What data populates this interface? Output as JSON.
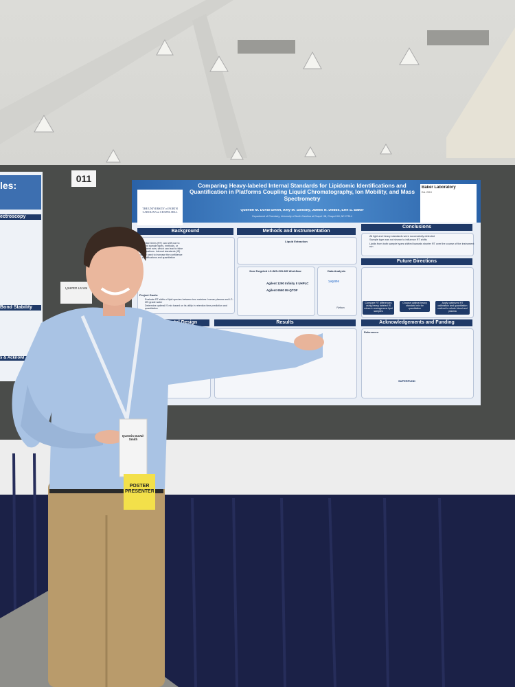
{
  "board_number": "011",
  "name_card": "Quentin DuVal",
  "badge": {
    "name": "Quentin DuVal-Smith",
    "role": "POSTER PRESENTER"
  },
  "left_poster": {
    "title_fragment": "les:",
    "section_1": "ectroscopy",
    "section_2": "Bond Stability",
    "section_3": "s & Acknowl"
  },
  "poster": {
    "title": "Comparing Heavy-labeled Internal Standards for Lipidomic Identifications and Quantification in Platforms Coupling Liquid Chromatography, Ion Mobility, and Mass Spectrometry",
    "authors": "Quentin M. DuVal-Smith, Amy M. Solosky, James N. Dodds, Erin S. Baker",
    "affiliation": "Department of Chemistry, University of North Carolina at Chapel Hill, Chapel Hill, NC 27514",
    "logo": "THE UNIVERSITY of NORTH CAROLINA at CHAPEL HILL",
    "lab": "Baker Laboratory",
    "lab_year": "Est. 2019",
    "background": {
      "heading": "Background",
      "text": "Retention times (RT) can shift due to different sample types, methods, or instrument runs, which can lead to false identifications. Internal standards (IS) can be used to increase the confidence in identifications and quantitation",
      "goals_heading": "Project Goals:",
      "goals": [
        "Evaluate RT shifts of lipid species between two matrices: human plasma and LC-MS grade water",
        "Determine optimal IS mix based on its utility in retention time prediction and quantitation"
      ]
    },
    "methods": {
      "heading": "Methods and Instrumentation",
      "extraction": "Liquid Extraction",
      "workflow": "Non-Targeted LC-IMS-CID-MS Workflow",
      "lc": "Agilent 1290 Infinity II UHPLC",
      "ms": "Agilent 6560 IM-QTOF",
      "analysis": "Data Analysis",
      "tool_1": "Skyline",
      "tool_2": "Python"
    },
    "conclusions": {
      "heading": "Conclusions",
      "items": [
        "All light and heavy standards were successfully detected",
        "Sample type was not shown to influence RT shifts",
        "Lipids from both sample types shifted towards shorter RT over the course of the instrument run"
      ]
    },
    "future": {
      "heading": "Future Directions",
      "items": [
        "Compare RT differences using heavy labeled IS mixes in endogenous lipid samples",
        "Choose optimal heavy standard mix for quantitation",
        "Apply optimized RT calibration and quantitation method to whole blood and plasma"
      ]
    },
    "experimental": {
      "heading": "Experimental Design"
    },
    "results": {
      "heading": "Results"
    },
    "acknowledgements": {
      "heading": "Acknowledgements and Funding",
      "references": "References:",
      "superfund": "SUPERFUND"
    }
  }
}
